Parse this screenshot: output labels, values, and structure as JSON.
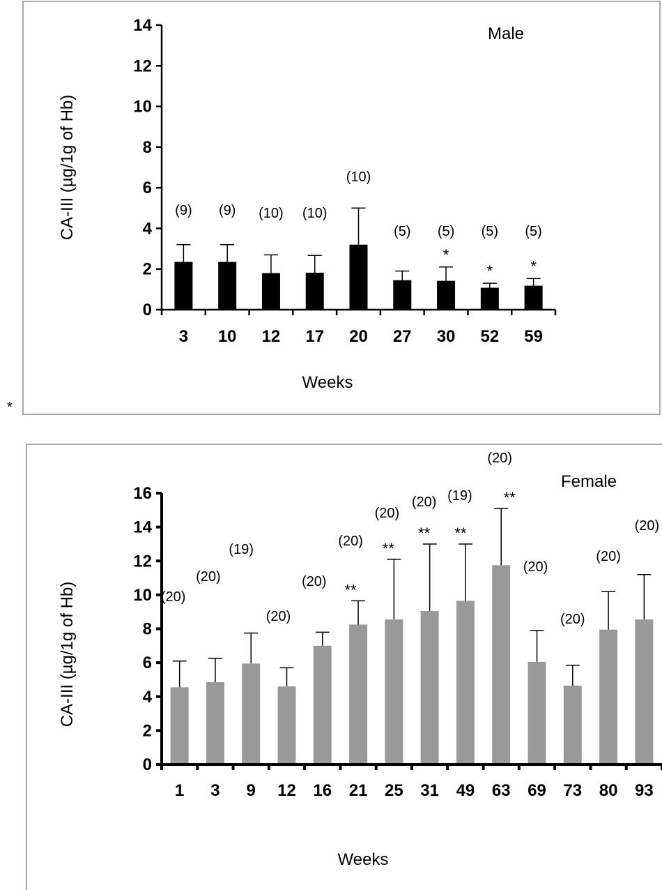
{
  "stray_mark": "*",
  "chart_data": [
    {
      "type": "bar",
      "legend_text": "Male",
      "xlabel": "Weeks",
      "ylabel": "CA-III (µg/1g of Hb)",
      "ylim": [
        0,
        14
      ],
      "yticks": [
        0,
        2,
        4,
        6,
        8,
        10,
        12,
        14
      ],
      "bar_color": "#000000",
      "categories": [
        "3",
        "10",
        "12",
        "17",
        "20",
        "27",
        "30",
        "52",
        "59"
      ],
      "values": [
        2.35,
        2.35,
        1.8,
        1.82,
        3.2,
        1.45,
        1.42,
        1.08,
        1.18
      ],
      "errors": [
        0.85,
        0.85,
        0.9,
        0.85,
        1.8,
        0.45,
        0.68,
        0.22,
        0.35
      ],
      "n_labels": [
        "(9)",
        "(9)",
        "(10)",
        "(10)",
        "(10)",
        "(5)",
        "(5)",
        "(5)",
        "(5)"
      ],
      "significance": [
        "",
        "",
        "",
        "",
        "",
        "",
        "*",
        "*",
        "*"
      ]
    },
    {
      "type": "bar",
      "legend_text": "Female",
      "xlabel": "Weeks",
      "ylabel": "CA-III (µg/1g of Hb)",
      "ylim": [
        0,
        16
      ],
      "yticks": [
        0,
        2,
        4,
        6,
        8,
        10,
        12,
        14,
        16
      ],
      "bar_color": "#999999",
      "categories": [
        "1",
        "3",
        "9",
        "12",
        "16",
        "21",
        "25",
        "31",
        "49",
        "63",
        "69",
        "73",
        "80",
        "93"
      ],
      "values": [
        4.55,
        4.85,
        5.95,
        4.6,
        7.0,
        8.25,
        8.55,
        9.05,
        9.65,
        11.75,
        6.05,
        4.65,
        7.95,
        8.55
      ],
      "errors": [
        1.55,
        1.4,
        1.8,
        1.1,
        0.8,
        1.4,
        3.55,
        3.95,
        3.35,
        3.35,
        1.85,
        1.2,
        2.25,
        2.65
      ],
      "n_labels": [
        "(20)",
        "(20)",
        "(19)",
        "(20)",
        "(20)",
        "(20)",
        "(20)",
        "(20)",
        "(19)",
        "(20)",
        "(20)",
        "(20)",
        "(20)",
        "(20)"
      ],
      "significance": [
        "",
        "",
        "",
        "",
        "",
        "**",
        "**",
        "**",
        "**",
        "**",
        "",
        "",
        "",
        ""
      ]
    }
  ]
}
